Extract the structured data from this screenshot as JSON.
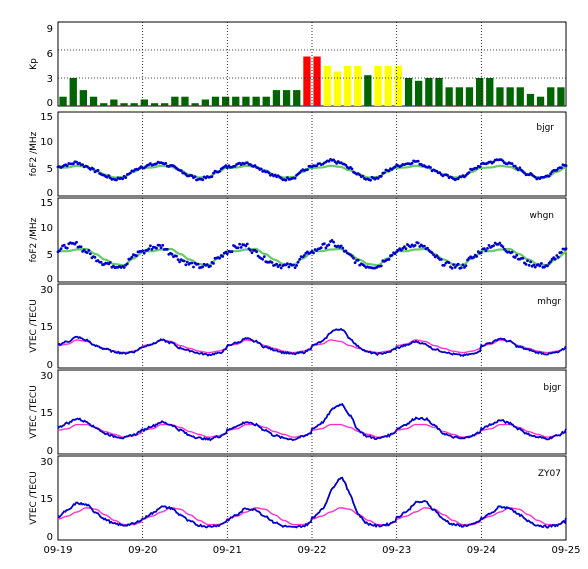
{
  "chart_data": {
    "type": "multi-panel",
    "x_labels": [
      "09-19",
      "09-20",
      "09-21",
      "09-22",
      "09-23",
      "09-24",
      "09-25"
    ],
    "colors": {
      "kp_quiet": "#006400",
      "kp_moderate": "#ffff00",
      "kp_storm": "#ff0000",
      "obs": "#0000cc",
      "ref_fof2": "#66cc66",
      "ref_vtec": "#ff33cc"
    },
    "kp": {
      "ylabel": "Kp",
      "ylim": [
        0,
        9
      ],
      "yticks": [
        "0",
        "3",
        "6",
        "9"
      ],
      "values": [
        1,
        3,
        1.7,
        1,
        0.3,
        0.7,
        0.3,
        0.3,
        0.7,
        0.3,
        0.3,
        1,
        1,
        0.3,
        0.7,
        1,
        1,
        1,
        1,
        1,
        1,
        1.7,
        1.7,
        1.7,
        5.3,
        5.3,
        4.3,
        3.7,
        4.3,
        4.3,
        3.3,
        4.3,
        4.3,
        4.3,
        3,
        2.7,
        3,
        3,
        2,
        2,
        2,
        3,
        3,
        2,
        2,
        2,
        1.3,
        1,
        2,
        2
      ]
    },
    "panels": [
      {
        "station": "bjgr",
        "ylabel": "foF2 /MHz",
        "ylim": [
          0,
          15
        ],
        "yticks": [
          "0",
          "5",
          "10",
          "15"
        ],
        "ref_daily": [
          5.0,
          5.1,
          5.4,
          5.2,
          4.6,
          3.8,
          3.3,
          3.4,
          4.3,
          5.1
        ],
        "obs_daily": [
          5.2,
          5.6,
          6.0,
          5.3,
          4.5,
          3.6,
          3.0,
          3.3,
          4.5,
          5.3
        ],
        "obs_scale": [
          1.0,
          1.0,
          1.0,
          1.12,
          1.03,
          1.08
        ],
        "obs_noise": 0.25
      },
      {
        "station": "whgn",
        "ylabel": "foF2 /MHz",
        "ylim": [
          0,
          15
        ],
        "yticks": [
          "0",
          "5",
          "10",
          "15"
        ],
        "ref_daily": [
          5.5,
          5.5,
          5.8,
          5.9,
          5.0,
          4.0,
          3.2,
          3.0,
          4.2,
          5.3
        ],
        "obs_daily": [
          5.3,
          6.2,
          6.4,
          5.2,
          4.0,
          3.2,
          2.8,
          2.8,
          4.3,
          5.5
        ],
        "obs_scale": [
          1.05,
          1.0,
          1.02,
          1.2,
          1.18,
          1.05
        ],
        "obs_noise": 0.45
      },
      {
        "station": "mhgr",
        "ylabel": "VTEC /TECU",
        "ylim": [
          0,
          30
        ],
        "yticks": [
          "0",
          "15",
          "30"
        ],
        "ref_daily": [
          8.0,
          8.5,
          10.0,
          9.5,
          8.0,
          7.0,
          6.0,
          5.5,
          6.0,
          7.0
        ],
        "obs_daily": [
          8.0,
          9.0,
          10.5,
          9.5,
          7.5,
          6.5,
          5.5,
          5.0,
          5.5,
          7.0
        ],
        "obs_scale": [
          1.05,
          0.95,
          1.0,
          1.5,
          0.9,
          1.0
        ],
        "obs_noise": 0.3
      },
      {
        "station": "bjgr",
        "ylabel": "VTEC /TECU",
        "ylim": [
          0,
          30
        ],
        "yticks": [
          "0",
          "15",
          "30"
        ],
        "ref_daily": [
          8.5,
          9.0,
          10.5,
          10.5,
          9.5,
          8.0,
          7.0,
          6.0,
          6.5,
          7.5
        ],
        "obs_daily": [
          9.0,
          10.5,
          12.0,
          11.0,
          9.0,
          7.0,
          6.0,
          5.5,
          6.5,
          8.0
        ],
        "obs_scale": [
          1.05,
          0.95,
          0.95,
          1.65,
          1.15,
          1.0
        ],
        "obs_noise": 0.35
      },
      {
        "station": "ZY07",
        "ylabel": "VTEC /TECU",
        "ylim": [
          0,
          30
        ],
        "yticks": [
          "0",
          "15",
          "30"
        ],
        "ref_daily": [
          7.5,
          8.5,
          10.0,
          11.5,
          11.0,
          9.0,
          7.0,
          5.5,
          5.5,
          6.5
        ],
        "obs_daily": [
          8.0,
          10.0,
          12.5,
          12.0,
          9.5,
          7.0,
          5.5,
          5.0,
          5.5,
          7.0
        ],
        "obs_scale": [
          1.05,
          0.95,
          0.9,
          1.9,
          1.15,
          0.95
        ],
        "obs_noise": 0.35
      }
    ]
  }
}
